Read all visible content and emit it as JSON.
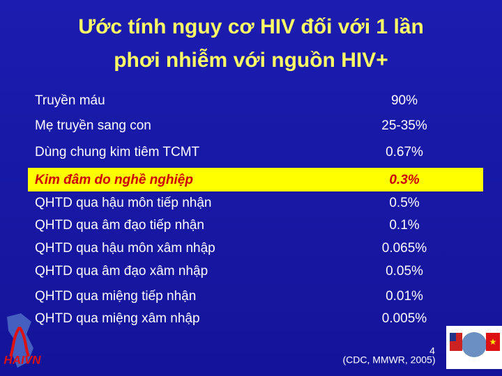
{
  "header": {
    "title_lines": [
      "Ước tính nguy cơ HIV đối với 1 lần",
      "phơi nhiễm với nguồn HIV+"
    ]
  },
  "table": {
    "rows": [
      [
        "Truyền máu",
        "90%"
      ],
      [
        "Mẹ truyền sang con",
        "25-35%"
      ],
      [
        "Dùng chung kim tiêm TCMT",
        "0.67%"
      ],
      [
        "Kim đâm do nghề nghiệp",
        "0.3%"
      ],
      [
        "QHTD qua hậu môn tiếp nhận",
        "0.5%"
      ],
      [
        "QHTD qua âm đạo tiếp nhận",
        "0.1%"
      ],
      [
        "QHTD qua hậu môn xâm nhập",
        "0.065%"
      ],
      [
        "QHTD qua âm đạo xâm nhập",
        "0.05%"
      ],
      [
        "QHTD  qua miệng tiếp nhận",
        "0.01%"
      ],
      [
        "QHTD qua miệng xâm nhập",
        "0.005%"
      ]
    ],
    "highlighted_row": 3
  },
  "footer": {
    "source": "(CDC, MMWR, 2005)",
    "page_number": "4",
    "logo": "HAIVN"
  }
}
